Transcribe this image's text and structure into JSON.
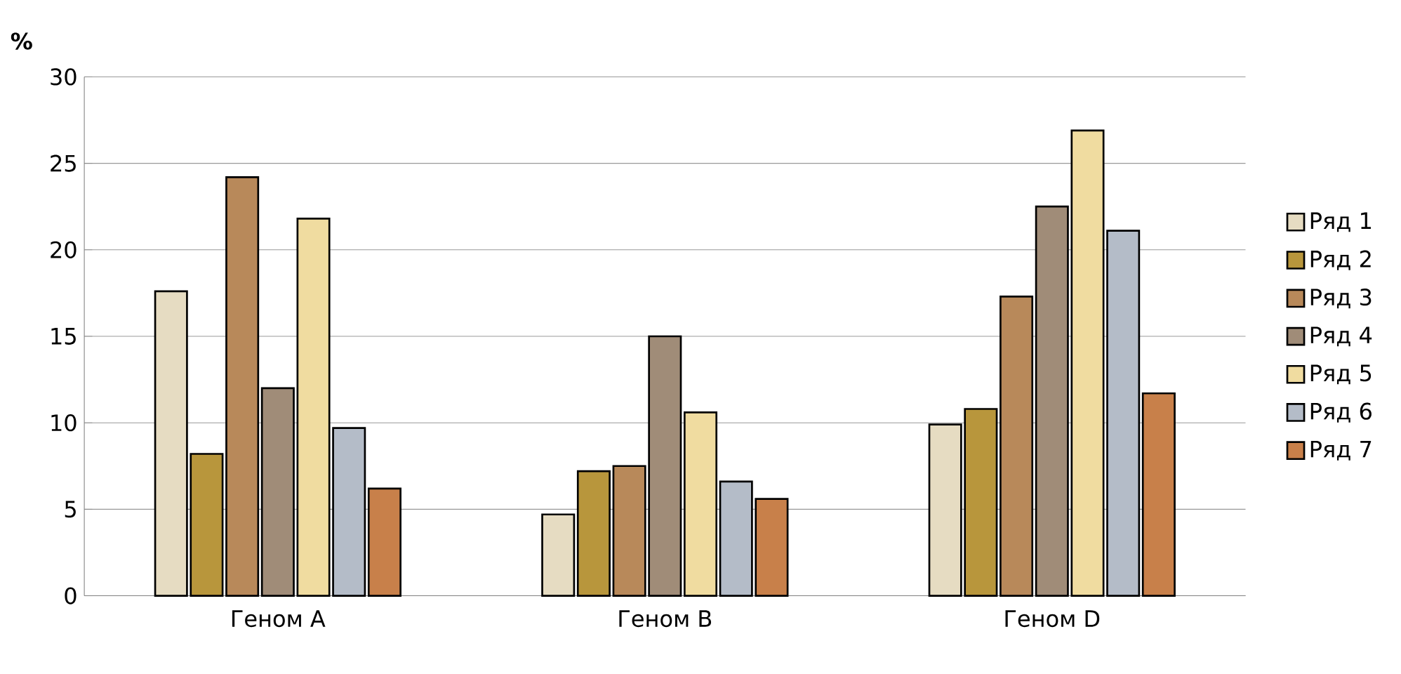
{
  "chart_data": {
    "type": "bar",
    "ylabel": "%",
    "categories": [
      "Геном A",
      "Геном B",
      "Геном D"
    ],
    "series": [
      {
        "name": "Ряд 1",
        "color": "#e6dcc2",
        "values": [
          17.6,
          4.7,
          9.9
        ]
      },
      {
        "name": "Ряд 2",
        "color": "#b8963c",
        "values": [
          8.2,
          7.2,
          10.8
        ]
      },
      {
        "name": "Ряд 3",
        "color": "#b8895a",
        "values": [
          24.2,
          7.5,
          17.3
        ]
      },
      {
        "name": "Ряд 4",
        "color": "#a08c78",
        "values": [
          12.0,
          15.0,
          22.5
        ]
      },
      {
        "name": "Ряд 5",
        "color": "#f0dca0",
        "values": [
          21.8,
          10.6,
          26.9
        ]
      },
      {
        "name": "Ряд 6",
        "color": "#b4bcc8",
        "values": [
          9.7,
          6.6,
          21.1
        ]
      },
      {
        "name": "Ряд 7",
        "color": "#c8804a",
        "values": [
          6.2,
          5.6,
          11.7
        ]
      }
    ],
    "ylim": [
      0,
      30
    ],
    "yticks": [
      0,
      5,
      10,
      15,
      20,
      25,
      30
    ],
    "grid": "y",
    "legend": "right"
  }
}
